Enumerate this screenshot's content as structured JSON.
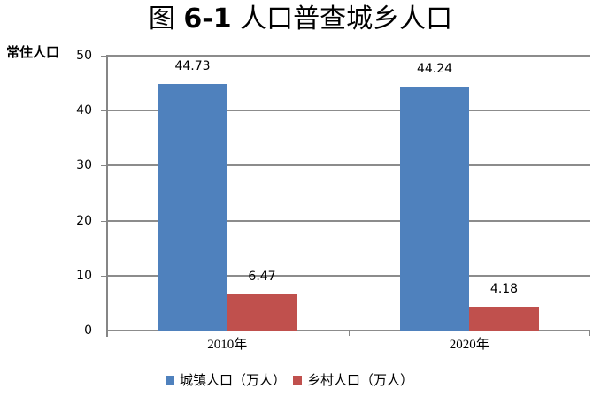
{
  "chart_data": {
    "type": "bar",
    "title": "图 6-1 人口普查城乡人口",
    "title_prefix": "图",
    "title_number": "6-1",
    "title_text": "人口普查城乡人口",
    "xlabel": "",
    "ylabel": "常住人口",
    "ylim": [
      0,
      50
    ],
    "yticks": [
      "0",
      "10",
      "20",
      "30",
      "40",
      "50"
    ],
    "categories": [
      "2010年",
      "2020年"
    ],
    "series": [
      {
        "name": "城镇人口（万人）",
        "color": "#4F81BD",
        "values": [
          44.73,
          44.24
        ],
        "labels": [
          "44.73",
          "44.24"
        ]
      },
      {
        "name": "乡村人口（万人）",
        "color": "#C0504D",
        "values": [
          6.47,
          4.18
        ],
        "labels": [
          "6.47",
          "4.18"
        ]
      }
    ],
    "grid": true,
    "legend_position": "bottom"
  }
}
